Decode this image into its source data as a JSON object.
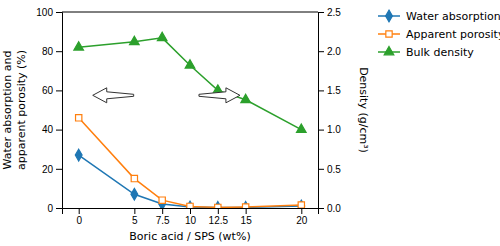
{
  "chart_data": {
    "type": "line",
    "xlabel": "Boric acid / SPS (wt%)",
    "ylabel": "Water absorption and\napparent porosity (%)",
    "y2label": "Density  (g/cm³)",
    "x": [
      0,
      5,
      7.5,
      10,
      12.5,
      15,
      20
    ],
    "xlim": [
      -1.5,
      21.5
    ],
    "xticks": [
      0,
      5,
      7.5,
      10,
      12.5,
      15,
      20
    ],
    "ylim": [
      0,
      100
    ],
    "yticks": [
      0,
      20,
      40,
      60,
      80,
      100
    ],
    "y2lim": [
      0.0,
      2.5
    ],
    "y2ticks": [
      {
        "value": 0.0,
        "label": "0.0"
      },
      0.5,
      {
        "value": 1.0,
        "label": "1.0"
      },
      1.5,
      {
        "value": 2.0,
        "label": "2.0"
      },
      2.5
    ],
    "grid": false,
    "legend": "right",
    "series": [
      {
        "name": "Water absorption",
        "marker": "diamond",
        "values": [
          27,
          7,
          2,
          0.5,
          0.3,
          0.3,
          1.0
        ]
      },
      {
        "name": "Apparent porosity",
        "marker": "square-open",
        "values": [
          46,
          15,
          4,
          0.8,
          0.3,
          0.5,
          1.5
        ]
      },
      {
        "name": "Bulk density",
        "marker": "triangle",
        "axis": "y2",
        "values": [
          2.05,
          2.12,
          2.17,
          1.82,
          1.5,
          1.38,
          1.0
        ]
      }
    ]
  }
}
